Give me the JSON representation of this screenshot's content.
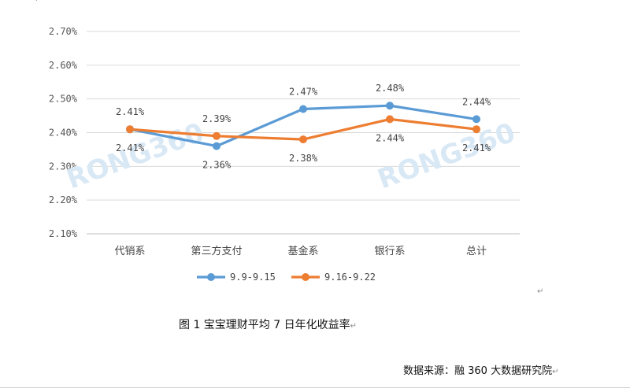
{
  "chart_data": {
    "type": "line",
    "categories": [
      "代销系",
      "第三方支付",
      "基金系",
      "银行系",
      "总计"
    ],
    "series": [
      {
        "name": "9.9-9.15",
        "values": [
          2.41,
          2.36,
          2.47,
          2.48,
          2.44
        ],
        "labels": [
          "2.41%",
          "2.36%",
          "2.47%",
          "2.48%",
          "2.44%"
        ],
        "color": "#5b9bd5"
      },
      {
        "name": "9.16-9.22",
        "values": [
          2.41,
          2.39,
          2.38,
          2.44,
          2.41
        ],
        "labels": [
          "2.41%",
          "2.39%",
          "2.38%",
          "2.44%",
          "2.41%"
        ],
        "color": "#ed7d31"
      }
    ],
    "yticks": [
      "2.10%",
      "2.20%",
      "2.30%",
      "2.40%",
      "2.50%",
      "2.60%",
      "2.70%"
    ],
    "ylim": [
      2.1,
      2.7
    ],
    "grid": true,
    "legend": "bottom"
  },
  "watermark": "RONG360",
  "caption": "图 1  宝宝理财平均 7 日年化收益率",
  "source": "数据来源：融 360 大数据研究院",
  "marks": {
    "return": "↵",
    "corner": "↵"
  }
}
